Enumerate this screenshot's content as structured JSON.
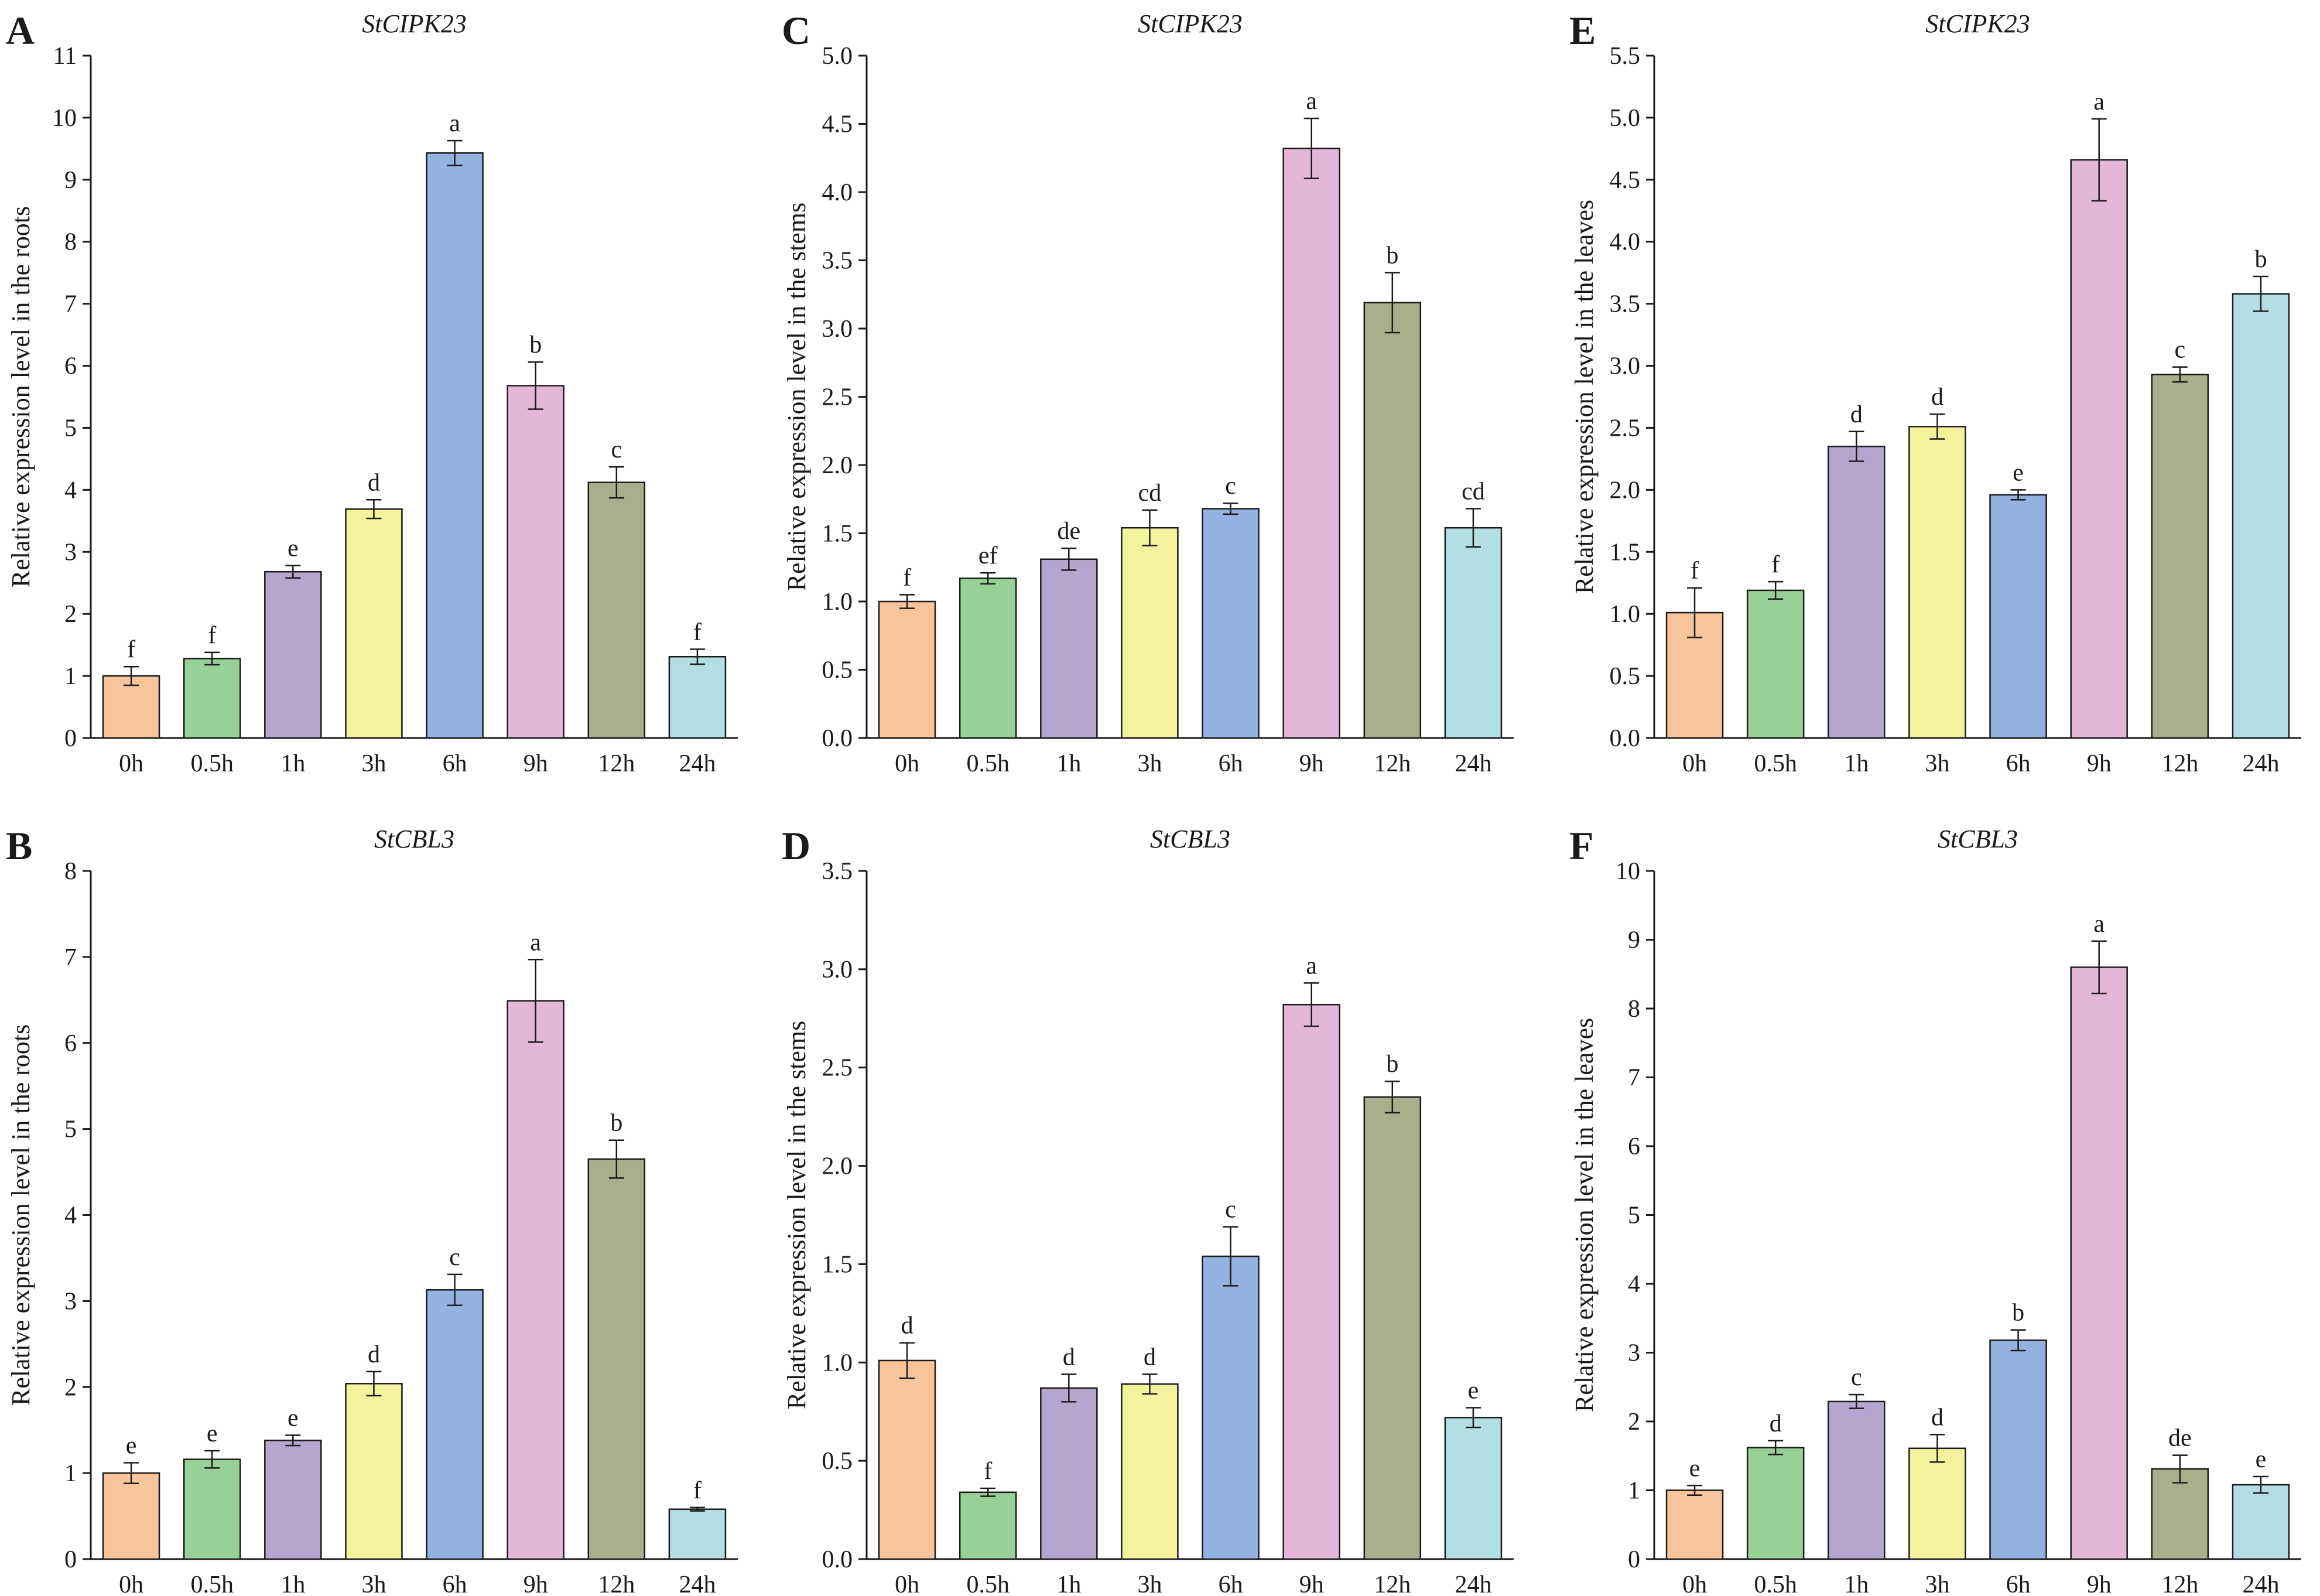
{
  "chart_data": [
    {
      "id": "A",
      "type": "bar",
      "title": "StCIPK23",
      "ylabel": "Relative expression level in the roots",
      "xlabel": "",
      "ylim": [
        0,
        11
      ],
      "yticks": [
        0,
        1,
        2,
        3,
        4,
        5,
        6,
        7,
        8,
        9,
        10,
        11
      ],
      "categories": [
        "0h",
        "0.5h",
        "1h",
        "3h",
        "6h",
        "9h",
        "12h",
        "24h"
      ],
      "values": [
        1.0,
        1.28,
        2.68,
        3.69,
        9.43,
        5.68,
        4.12,
        1.31
      ],
      "errors": [
        0.15,
        0.1,
        0.1,
        0.15,
        0.2,
        0.38,
        0.25,
        0.12
      ],
      "significance": [
        "f",
        "f",
        "e",
        "d",
        "a",
        "b",
        "c",
        "f"
      ]
    },
    {
      "id": "B",
      "type": "bar",
      "title": "StCBL3",
      "ylabel": "Relative expression level in the roots",
      "xlabel": "",
      "ylim": [
        0,
        8
      ],
      "yticks": [
        0,
        1,
        2,
        3,
        4,
        5,
        6,
        7,
        8
      ],
      "categories": [
        "0h",
        "0.5h",
        "1h",
        "3h",
        "6h",
        "9h",
        "12h",
        "24h"
      ],
      "values": [
        1.0,
        1.16,
        1.38,
        2.04,
        3.13,
        6.49,
        4.65,
        0.58
      ],
      "errors": [
        0.12,
        0.1,
        0.06,
        0.14,
        0.18,
        0.48,
        0.22,
        0.02
      ],
      "significance": [
        "e",
        "e",
        "e",
        "d",
        "c",
        "a",
        "b",
        "f"
      ]
    },
    {
      "id": "C",
      "type": "bar",
      "title": "StCIPK23",
      "ylabel": "Relative expression level in the stems",
      "xlabel": "",
      "ylim": [
        0,
        5.0
      ],
      "yticks": [
        0,
        0.5,
        1.0,
        1.5,
        2.0,
        2.5,
        3.0,
        3.5,
        4.0,
        4.5,
        5.0
      ],
      "categories": [
        "0h",
        "0.5h",
        "1h",
        "3h",
        "6h",
        "9h",
        "12h",
        "24h"
      ],
      "values": [
        1.0,
        1.17,
        1.31,
        1.54,
        1.68,
        4.32,
        3.19,
        1.54
      ],
      "errors": [
        0.05,
        0.04,
        0.08,
        0.13,
        0.04,
        0.22,
        0.22,
        0.14
      ],
      "significance": [
        "f",
        "ef",
        "de",
        "cd",
        "c",
        "a",
        "b",
        "cd"
      ]
    },
    {
      "id": "D",
      "type": "bar",
      "title": "StCBL3",
      "ylabel": "Relative expression level in the stems",
      "xlabel": "",
      "ylim": [
        0,
        3.5
      ],
      "yticks": [
        0,
        0.5,
        1.0,
        1.5,
        2.0,
        2.5,
        3.0,
        3.5
      ],
      "categories": [
        "0h",
        "0.5h",
        "1h",
        "3h",
        "6h",
        "9h",
        "12h",
        "24h"
      ],
      "values": [
        1.01,
        0.34,
        0.87,
        0.89,
        1.54,
        2.82,
        2.35,
        0.72
      ],
      "errors": [
        0.09,
        0.02,
        0.07,
        0.05,
        0.15,
        0.11,
        0.08,
        0.05
      ],
      "significance": [
        "d",
        "f",
        "d",
        "d",
        "c",
        "a",
        "b",
        "e"
      ]
    },
    {
      "id": "E",
      "type": "bar",
      "title": "StCIPK23",
      "ylabel": "Relative expression level in the leaves",
      "xlabel": "",
      "ylim": [
        0,
        5.5
      ],
      "yticks": [
        0,
        0.5,
        1.0,
        1.5,
        2.0,
        2.5,
        3.0,
        3.5,
        4.0,
        4.5,
        5.0,
        5.5
      ],
      "categories": [
        "0h",
        "0.5h",
        "1h",
        "3h",
        "6h",
        "9h",
        "12h",
        "24h"
      ],
      "values": [
        1.01,
        1.19,
        2.35,
        2.51,
        1.96,
        4.66,
        2.93,
        3.58
      ],
      "errors": [
        0.2,
        0.07,
        0.12,
        0.1,
        0.04,
        0.33,
        0.06,
        0.14
      ],
      "significance": [
        "f",
        "f",
        "d",
        "d",
        "e",
        "a",
        "c",
        "b"
      ]
    },
    {
      "id": "F",
      "type": "bar",
      "title": "StCBL3",
      "ylabel": "Relative expression level in the leaves",
      "xlabel": "",
      "ylim": [
        0,
        10
      ],
      "yticks": [
        0,
        1,
        2,
        3,
        4,
        5,
        6,
        7,
        8,
        9,
        10
      ],
      "categories": [
        "0h",
        "0.5h",
        "1h",
        "3h",
        "6h",
        "9h",
        "12h",
        "24h"
      ],
      "values": [
        1.0,
        1.62,
        2.29,
        1.61,
        3.18,
        8.6,
        1.31,
        1.08
      ],
      "errors": [
        0.07,
        0.1,
        0.1,
        0.2,
        0.15,
        0.38,
        0.2,
        0.12
      ],
      "significance": [
        "e",
        "d",
        "c",
        "d",
        "b",
        "a",
        "de",
        "e"
      ]
    }
  ],
  "bar_colors": [
    "#f7c49c",
    "#97d196",
    "#b5a6cf",
    "#f4f29c",
    "#93b2e0",
    "#e4b6d8",
    "#abae8c",
    "#b3dfe4"
  ],
  "axis_color": "#1a1a1a"
}
